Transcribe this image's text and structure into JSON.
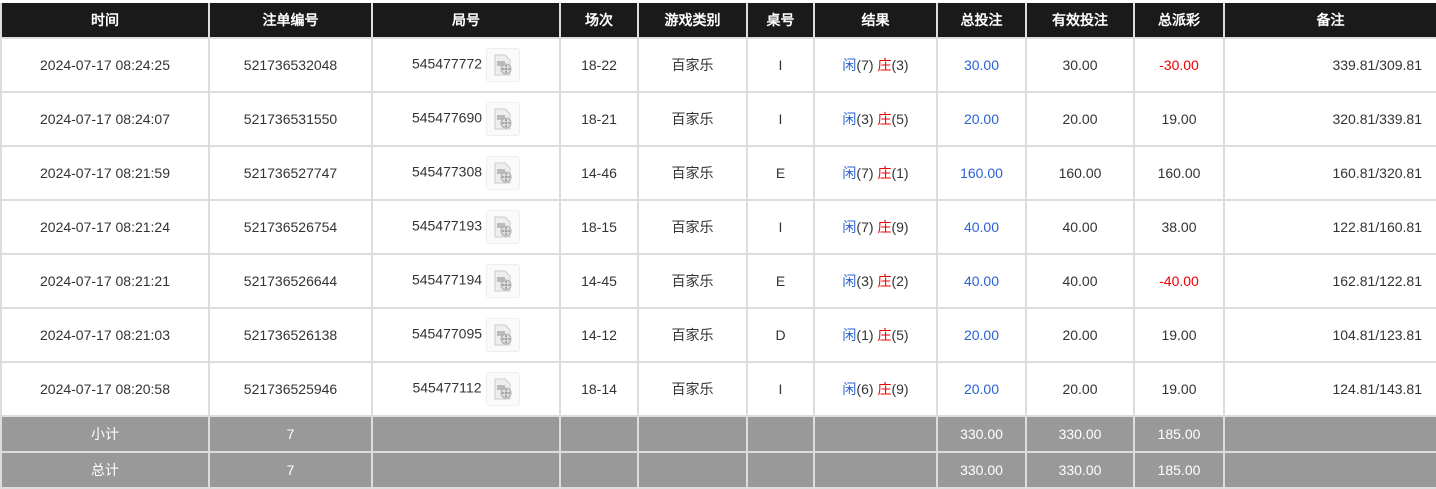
{
  "headers": [
    "时间",
    "注单编号",
    "局号",
    "场次",
    "游戏类别",
    "桌号",
    "结果",
    "总投注",
    "有效投注",
    "总派彩",
    "备注"
  ],
  "colors": {
    "player": "#2a62d6",
    "banker": "#e00000",
    "negative": "#e00000",
    "bet": "#2a62d6",
    "summary_bg": "#999999",
    "header_bg": "#1a1a1a"
  },
  "rows": [
    {
      "time": "2024-07-17 08:24:25",
      "order": "521736532048",
      "round": "545477772",
      "shoe": "18-22",
      "game": "百家乐",
      "table": "I",
      "player_label": "闲",
      "player": "(7)",
      "banker_label": "庄",
      "banker": "(3)",
      "bet": "30.00",
      "valid": "30.00",
      "payout": "-30.00",
      "note": "339.81/309.81",
      "video_icon": "video-replay-icon"
    },
    {
      "time": "2024-07-17 08:24:07",
      "order": "521736531550",
      "round": "545477690",
      "shoe": "18-21",
      "game": "百家乐",
      "table": "I",
      "player_label": "闲",
      "player": "(3)",
      "banker_label": "庄",
      "banker": "(5)",
      "bet": "20.00",
      "valid": "20.00",
      "payout": "19.00",
      "note": "320.81/339.81",
      "video_icon": "video-replay-icon"
    },
    {
      "time": "2024-07-17 08:21:59",
      "order": "521736527747",
      "round": "545477308",
      "shoe": "14-46",
      "game": "百家乐",
      "table": "E",
      "player_label": "闲",
      "player": "(7)",
      "banker_label": "庄",
      "banker": "(1)",
      "bet": "160.00",
      "valid": "160.00",
      "payout": "160.00",
      "note": "160.81/320.81",
      "video_icon": "video-replay-icon"
    },
    {
      "time": "2024-07-17 08:21:24",
      "order": "521736526754",
      "round": "545477193",
      "shoe": "18-15",
      "game": "百家乐",
      "table": "I",
      "player_label": "闲",
      "player": "(7)",
      "banker_label": "庄",
      "banker": "(9)",
      "bet": "40.00",
      "valid": "40.00",
      "payout": "38.00",
      "note": "122.81/160.81",
      "video_icon": "video-replay-icon"
    },
    {
      "time": "2024-07-17 08:21:21",
      "order": "521736526644",
      "round": "545477194",
      "shoe": "14-45",
      "game": "百家乐",
      "table": "E",
      "player_label": "闲",
      "player": "(3)",
      "banker_label": "庄",
      "banker": "(2)",
      "bet": "40.00",
      "valid": "40.00",
      "payout": "-40.00",
      "note": "162.81/122.81",
      "video_icon": "video-replay-icon"
    },
    {
      "time": "2024-07-17 08:21:03",
      "order": "521736526138",
      "round": "545477095",
      "shoe": "14-12",
      "game": "百家乐",
      "table": "D",
      "player_label": "闲",
      "player": "(1)",
      "banker_label": "庄",
      "banker": "(5)",
      "bet": "20.00",
      "valid": "20.00",
      "payout": "19.00",
      "note": "104.81/123.81",
      "video_icon": "video-replay-icon"
    },
    {
      "time": "2024-07-17 08:20:58",
      "order": "521736525946",
      "round": "545477112",
      "shoe": "18-14",
      "game": "百家乐",
      "table": "I",
      "player_label": "闲",
      "player": "(6)",
      "banker_label": "庄",
      "banker": "(9)",
      "bet": "20.00",
      "valid": "20.00",
      "payout": "19.00",
      "note": "124.81/143.81",
      "video_icon": "video-replay-icon"
    }
  ],
  "subtotal": {
    "label": "小计",
    "count": "7",
    "bet": "330.00",
    "valid": "330.00",
    "payout": "185.00"
  },
  "total": {
    "label": "总计",
    "count": "7",
    "bet": "330.00",
    "valid": "330.00",
    "payout": "185.00"
  }
}
